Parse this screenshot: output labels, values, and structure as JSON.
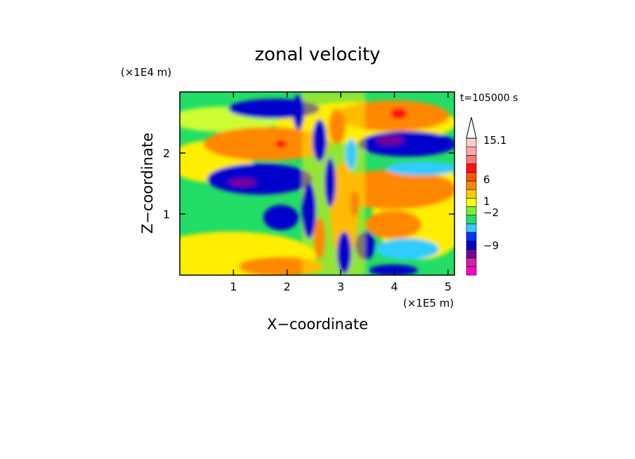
{
  "chart_data": {
    "type": "heatmap",
    "title": "zonal velocity",
    "xlabel": "X−coordinate",
    "ylabel": "Z−coordinate",
    "x_scale_label": "(×1E5 m)",
    "y_scale_label": "(×1E4 m)",
    "time_label": "t=105000 s",
    "xlim": [
      0,
      5.12
    ],
    "ylim": [
      0,
      3.0
    ],
    "x_ticks": [
      1,
      2,
      3,
      4,
      5
    ],
    "y_ticks": [
      1,
      2
    ],
    "colorbar": {
      "labels": [
        "15.1",
        "6",
        "1",
        "−2",
        "−9"
      ],
      "colors": [
        "#ff00cc",
        "#cc22aa",
        "#770099",
        "#0000cc",
        "#0033ff",
        "#33ccff",
        "#22dd66",
        "#77ee33",
        "#ffff00",
        "#ffcc00",
        "#ff8800",
        "#ff5500",
        "#ff1111",
        "#ff7777",
        "#ffaaaa",
        "#ffcccc"
      ],
      "extend_top": true
    }
  }
}
